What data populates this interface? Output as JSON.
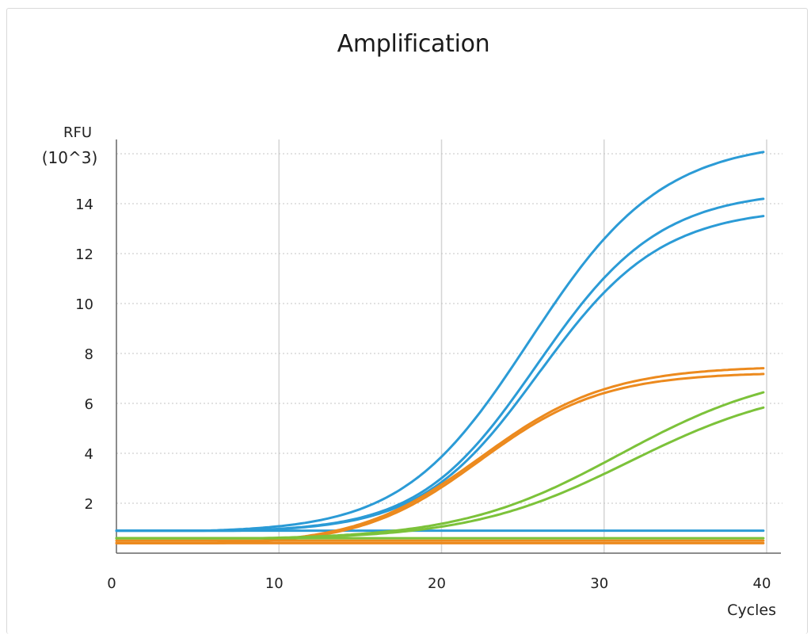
{
  "chart_data": {
    "type": "line",
    "title": "Amplification",
    "xlabel": "Cycles",
    "ylabel_line1": "RFU",
    "ylabel_line2": "(10^3)",
    "xlim": [
      0,
      40
    ],
    "ylim": [
      0,
      16
    ],
    "x_ticks": [
      0,
      10,
      20,
      30,
      40
    ],
    "y_ticks": [
      2,
      4,
      6,
      8,
      10,
      12,
      14
    ],
    "grid": {
      "vertical": true,
      "horizontal_dotted": true
    },
    "colors": {
      "blue": "#2b9bd6",
      "orange": "#ec8a1e",
      "green": "#7cc23a"
    },
    "series": [
      {
        "color": "blue",
        "baseline": 0.9,
        "plateau": 16.6,
        "midpoint": 24.8,
        "slope": 0.24
      },
      {
        "color": "blue",
        "baseline": 0.9,
        "plateau": 14.6,
        "midpoint": 25.3,
        "slope": 0.26
      },
      {
        "color": "blue",
        "baseline": 0.9,
        "plateau": 13.9,
        "midpoint": 25.4,
        "slope": 0.26
      },
      {
        "color": "blue",
        "baseline": 0.9,
        "flat": true
      },
      {
        "color": "orange",
        "baseline": 0.4,
        "plateau": 7.55,
        "midpoint": 21.8,
        "slope": 0.25
      },
      {
        "color": "orange",
        "baseline": 0.4,
        "plateau": 7.3,
        "midpoint": 21.8,
        "slope": 0.26
      },
      {
        "color": "orange",
        "baseline": 0.4,
        "flat": true
      },
      {
        "color": "orange",
        "baseline": 0.5,
        "flat": true
      },
      {
        "color": "green",
        "baseline": 0.6,
        "plateau": 7.6,
        "midpoint": 30.2,
        "slope": 0.19
      },
      {
        "color": "green",
        "baseline": 0.6,
        "plateau": 7.0,
        "midpoint": 30.8,
        "slope": 0.19
      },
      {
        "color": "green",
        "baseline": 0.6,
        "flat": true
      }
    ]
  }
}
